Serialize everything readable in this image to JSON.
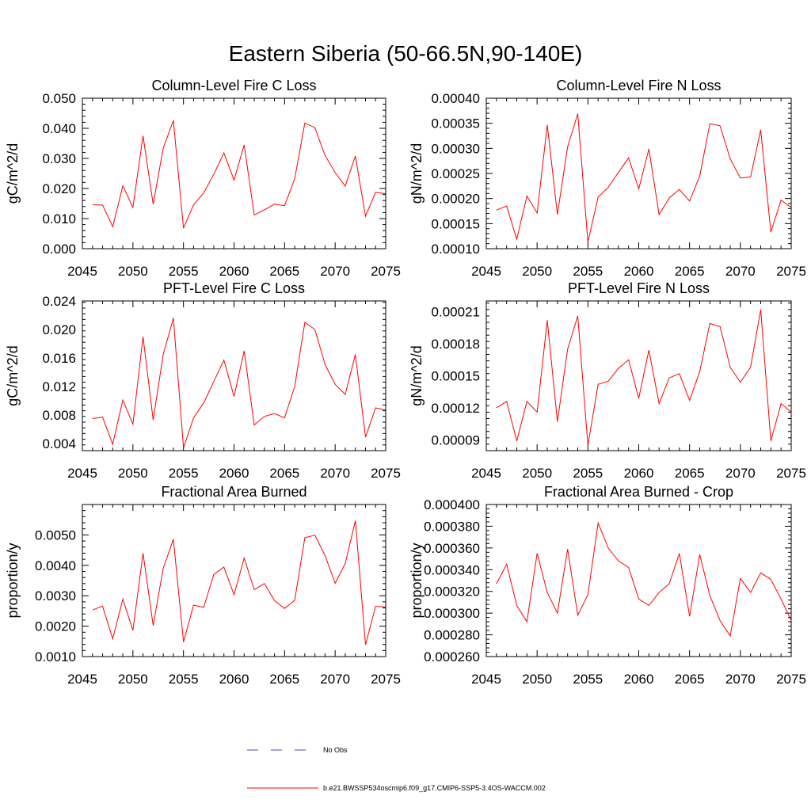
{
  "figure": {
    "title": "Eastern Siberia (50-66.5N,90-140E)"
  },
  "legend": [
    {
      "label": "No Obs",
      "color": "#4a4ab0",
      "dash": "dashed"
    },
    {
      "label": "b.e21.BWSSP534oscmip6.f09_g17.CMIP6-SSP5-3.4OS-WACCM.002",
      "color": "#ff0000",
      "dash": "solid"
    }
  ],
  "chart_data": [
    {
      "type": "line",
      "title": "Column-Level Fire C Loss",
      "ylabel": "gC/m^2/d",
      "xlabel": "",
      "xlim": [
        2045,
        2075
      ],
      "ylim": [
        0.0,
        0.05
      ],
      "xticks": [
        "2045",
        "2050",
        "2055",
        "2060",
        "2065",
        "2070",
        "2075"
      ],
      "yticks": [
        "0.000",
        "0.010",
        "0.020",
        "0.030",
        "0.040",
        "0.050"
      ],
      "x": [
        2046,
        2047,
        2048,
        2049,
        2050,
        2051,
        2052,
        2053,
        2054,
        2055,
        2056,
        2057,
        2058,
        2059,
        2060,
        2061,
        2062,
        2063,
        2064,
        2065,
        2066,
        2067,
        2068,
        2069,
        2070,
        2071,
        2072,
        2073,
        2074,
        2075
      ],
      "series": [
        {
          "color": "#ff0000",
          "values": [
            0.0146,
            0.0145,
            0.0073,
            0.0209,
            0.0137,
            0.0375,
            0.0148,
            0.0334,
            0.0426,
            0.0068,
            0.0146,
            0.0185,
            0.0248,
            0.0318,
            0.0228,
            0.0345,
            0.0112,
            0.0129,
            0.0148,
            0.0143,
            0.0232,
            0.0418,
            0.0402,
            0.031,
            0.0253,
            0.0208,
            0.0308,
            0.0108,
            0.0187,
            0.0183
          ]
        }
      ]
    },
    {
      "type": "line",
      "title": "Column-Level Fire N Loss",
      "ylabel": "gN/m^2/d",
      "xlabel": "",
      "xlim": [
        2045,
        2075
      ],
      "ylim": [
        0.0001,
        0.0004
      ],
      "xticks": [
        "2045",
        "2050",
        "2055",
        "2060",
        "2065",
        "2070",
        "2075"
      ],
      "yticks": [
        "0.00010",
        "0.00015",
        "0.00020",
        "0.00025",
        "0.00030",
        "0.00035",
        "0.00040"
      ],
      "x": [
        2046,
        2047,
        2048,
        2049,
        2050,
        2051,
        2052,
        2053,
        2054,
        2055,
        2056,
        2057,
        2058,
        2059,
        2060,
        2061,
        2062,
        2063,
        2064,
        2065,
        2066,
        2067,
        2068,
        2069,
        2070,
        2071,
        2072,
        2073,
        2074,
        2075
      ],
      "series": [
        {
          "color": "#ff0000",
          "values": [
            0.000177,
            0.000185,
            0.000119,
            0.000205,
            0.000171,
            0.000347,
            0.000168,
            0.000303,
            0.000369,
            0.000113,
            0.000203,
            0.000222,
            0.000252,
            0.000281,
            0.000219,
            0.000299,
            0.000168,
            0.000201,
            0.000218,
            0.000195,
            0.000245,
            0.000349,
            0.000345,
            0.000279,
            0.000241,
            0.000243,
            0.000337,
            0.000133,
            0.000197,
            0.000182
          ]
        }
      ]
    },
    {
      "type": "line",
      "title": "PFT-Level Fire C Loss",
      "ylabel": "gC/m^2/d",
      "xlabel": "",
      "xlim": [
        2045,
        2075
      ],
      "ylim": [
        0.003,
        0.024
      ],
      "xticks": [
        "2045",
        "2050",
        "2055",
        "2060",
        "2065",
        "2070",
        "2075"
      ],
      "yticks": [
        "0.004",
        "0.008",
        "0.012",
        "0.016",
        "0.020",
        "0.024"
      ],
      "x": [
        2046,
        2047,
        2048,
        2049,
        2050,
        2051,
        2052,
        2053,
        2054,
        2055,
        2056,
        2057,
        2058,
        2059,
        2060,
        2061,
        2062,
        2063,
        2064,
        2065,
        2066,
        2067,
        2068,
        2069,
        2070,
        2071,
        2072,
        2073,
        2074,
        2075
      ],
      "series": [
        {
          "color": "#ff0000",
          "values": [
            0.0075,
            0.0077,
            0.0039,
            0.0101,
            0.0067,
            0.019,
            0.0073,
            0.0165,
            0.0216,
            0.0034,
            0.0076,
            0.0097,
            0.0127,
            0.0157,
            0.0106,
            0.017,
            0.0066,
            0.0078,
            0.0082,
            0.0076,
            0.012,
            0.021,
            0.02,
            0.0151,
            0.0123,
            0.0109,
            0.0165,
            0.0049,
            0.009,
            0.0087
          ]
        }
      ]
    },
    {
      "type": "line",
      "title": "PFT-Level Fire N Loss",
      "ylabel": "gN/m^2/d",
      "xlabel": "",
      "xlim": [
        2045,
        2075
      ],
      "ylim": [
        8e-05,
        0.00022
      ],
      "xticks": [
        "2045",
        "2050",
        "2055",
        "2060",
        "2065",
        "2070",
        "2075"
      ],
      "yticks": [
        "0.00009",
        "0.00012",
        "0.00015",
        "0.00018",
        "0.00021"
      ],
      "x": [
        2046,
        2047,
        2048,
        2049,
        2050,
        2051,
        2052,
        2053,
        2054,
        2055,
        2056,
        2057,
        2058,
        2059,
        2060,
        2061,
        2062,
        2063,
        2064,
        2065,
        2066,
        2067,
        2068,
        2069,
        2070,
        2071,
        2072,
        2073,
        2074,
        2075
      ],
      "series": [
        {
          "color": "#ff0000",
          "values": [
            0.00012,
            0.000126,
            8.9e-05,
            0.000126,
            0.000116,
            0.000202,
            0.000107,
            0.000175,
            0.000206,
            8.5e-05,
            0.000142,
            0.000145,
            0.000157,
            0.000165,
            0.000129,
            0.000174,
            0.000124,
            0.000148,
            0.000152,
            0.000127,
            0.000154,
            0.000199,
            0.000196,
            0.000158,
            0.000144,
            0.000158,
            0.000212,
            8.9e-05,
            0.000124,
            0.000116
          ]
        }
      ]
    },
    {
      "type": "line",
      "title": "Fractional Area Burned",
      "ylabel": "proportion/y",
      "xlabel": "",
      "xlim": [
        2045,
        2075
      ],
      "ylim": [
        0.001,
        0.006
      ],
      "xticks": [
        "2045",
        "2050",
        "2055",
        "2060",
        "2065",
        "2070",
        "2075"
      ],
      "yticks": [
        "0.0010",
        "0.0020",
        "0.0030",
        "0.0040",
        "0.0050"
      ],
      "x": [
        2046,
        2047,
        2048,
        2049,
        2050,
        2051,
        2052,
        2053,
        2054,
        2055,
        2056,
        2057,
        2058,
        2059,
        2060,
        2061,
        2062,
        2063,
        2064,
        2065,
        2066,
        2067,
        2068,
        2069,
        2070,
        2071,
        2072,
        2073,
        2074,
        2075
      ],
      "series": [
        {
          "color": "#ff0000",
          "values": [
            0.00253,
            0.00266,
            0.00158,
            0.00289,
            0.00186,
            0.0044,
            0.00202,
            0.0039,
            0.00486,
            0.00148,
            0.00269,
            0.00262,
            0.0037,
            0.00394,
            0.00303,
            0.00424,
            0.0032,
            0.0034,
            0.00284,
            0.00258,
            0.00285,
            0.00491,
            0.00499,
            0.00432,
            0.00341,
            0.00406,
            0.00547,
            0.00139,
            0.00265,
            0.00263
          ]
        }
      ]
    },
    {
      "type": "line",
      "title": "Fractional Area Burned - Crop",
      "ylabel": "proportion/y",
      "xlabel": "",
      "xlim": [
        2045,
        2075
      ],
      "ylim": [
        0.00026,
        0.0004
      ],
      "xticks": [
        "2045",
        "2050",
        "2055",
        "2060",
        "2065",
        "2070",
        "2075"
      ],
      "yticks": [
        "0.000260",
        "0.000280",
        "0.000300",
        "0.000320",
        "0.000340",
        "0.000360",
        "0.000380",
        "0.000400"
      ],
      "x": [
        2046,
        2047,
        2048,
        2049,
        2050,
        2051,
        2052,
        2053,
        2054,
        2055,
        2056,
        2057,
        2058,
        2059,
        2060,
        2061,
        2062,
        2063,
        2064,
        2065,
        2066,
        2067,
        2068,
        2069,
        2070,
        2071,
        2072,
        2073,
        2074,
        2075
      ],
      "series": [
        {
          "color": "#ff0000",
          "values": [
            0.000327,
            0.000345,
            0.000307,
            0.000292,
            0.000355,
            0.000319,
            0.0003,
            0.000359,
            0.000298,
            0.000317,
            0.000383,
            0.00036,
            0.000348,
            0.000342,
            0.000313,
            0.000307,
            0.000319,
            0.000327,
            0.000355,
            0.000297,
            0.000354,
            0.000316,
            0.000293,
            0.000279,
            0.000332,
            0.000319,
            0.000337,
            0.000331,
            0.000313,
            0.000293
          ]
        }
      ]
    }
  ]
}
